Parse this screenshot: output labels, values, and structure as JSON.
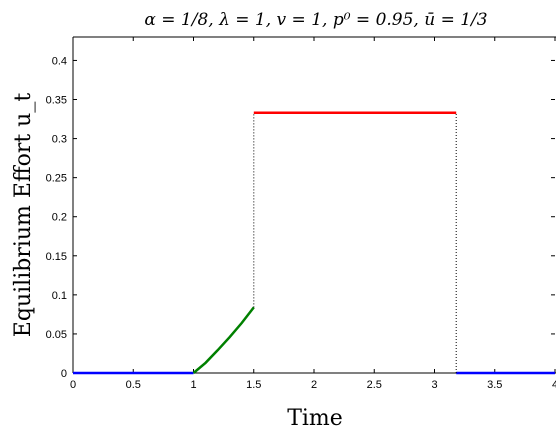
{
  "chart_data": {
    "type": "line",
    "title": "α = 1/8, λ = 1, v = 1, p⁰ = 0.95, ū = 1/3",
    "xlabel": "Time",
    "ylabel": "Equilibrium Effort u_t",
    "xlim": [
      0,
      4
    ],
    "ylim": [
      0,
      0.43
    ],
    "xticks": [
      0,
      0.5,
      1,
      1.5,
      2,
      2.5,
      3,
      3.5,
      4
    ],
    "xtick_labels": [
      "0",
      "0.5",
      "1",
      "1.5",
      "2",
      "2.5",
      "3",
      "3.5",
      "4"
    ],
    "yticks": [
      0,
      0.05,
      0.1,
      0.15,
      0.2,
      0.25,
      0.3,
      0.35,
      0.4
    ],
    "ytick_labels": [
      "0",
      "0.05",
      "0.1",
      "0.15",
      "0.2",
      "0.25",
      "0.3",
      "0.35",
      "0.4"
    ],
    "grid": false,
    "series": [
      {
        "color": "#0000ff",
        "style": "solid",
        "x": [
          0,
          1
        ],
        "y": [
          0,
          0
        ]
      },
      {
        "color": "#008000",
        "style": "solid",
        "x": [
          1,
          1.1,
          1.2,
          1.3,
          1.4,
          1.5
        ],
        "y": [
          0,
          0.013,
          0.029,
          0.046,
          0.064,
          0.084
        ]
      },
      {
        "color": "#ff0000",
        "style": "solid",
        "x": [
          1.5,
          3.18
        ],
        "y": [
          0.333,
          0.333
        ]
      },
      {
        "color": "#0000ff",
        "style": "solid",
        "x": [
          3.18,
          4
        ],
        "y": [
          0,
          0
        ]
      },
      {
        "color": "#000000",
        "style": "dotted",
        "x": [
          1.5,
          1.5
        ],
        "y": [
          0.084,
          0.333
        ]
      },
      {
        "color": "#000000",
        "style": "dotted",
        "x": [
          3.18,
          3.18
        ],
        "y": [
          0,
          0.333
        ]
      }
    ]
  }
}
